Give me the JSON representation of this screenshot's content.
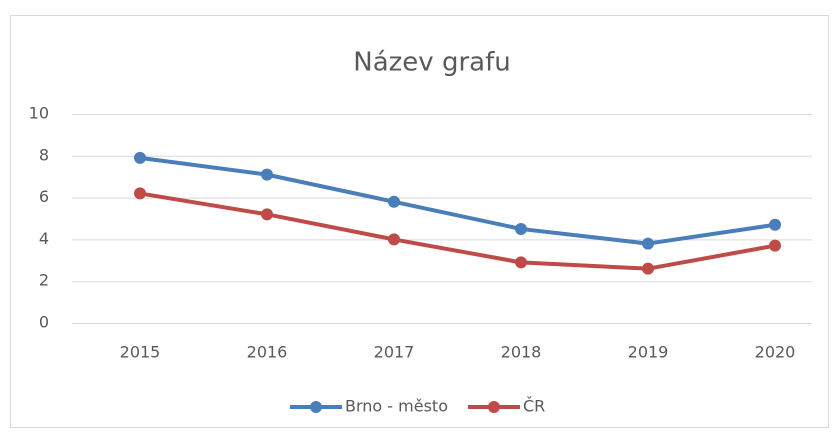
{
  "chart_data": {
    "type": "line",
    "title": "Název grafu",
    "categories": [
      "2015",
      "2016",
      "2017",
      "2018",
      "2019",
      "2020"
    ],
    "series": [
      {
        "name": "Brno - město",
        "color": "#4a7ebb",
        "values": [
          7.9,
          7.1,
          5.8,
          4.5,
          3.8,
          4.7
        ]
      },
      {
        "name": "ČR",
        "color": "#be4b48",
        "values": [
          6.2,
          5.2,
          4.0,
          2.9,
          2.6,
          3.7
        ]
      }
    ],
    "ylim": [
      0,
      10
    ],
    "yticks": [
      0,
      2,
      4,
      6,
      8,
      10
    ],
    "grid": true,
    "legend": "bottom"
  }
}
